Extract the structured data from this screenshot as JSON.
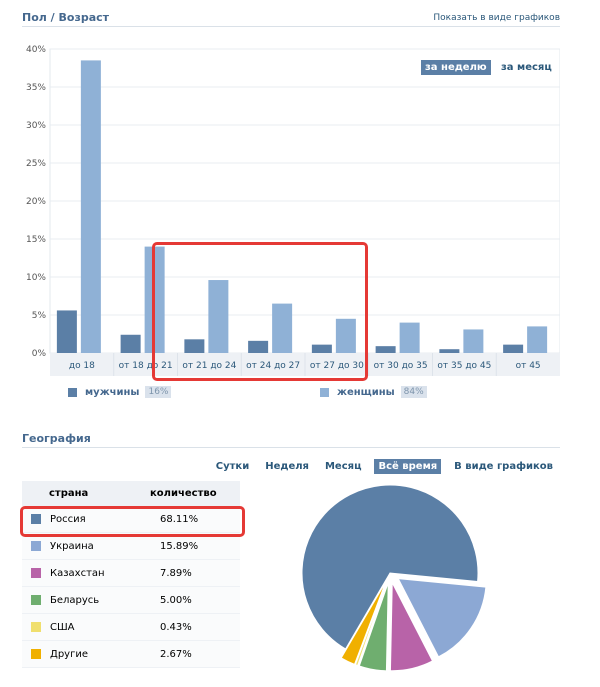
{
  "age_section": {
    "title": "Пол / Возраст",
    "graph_link": "Показать в виде графиков",
    "period_week": "за неделю",
    "period_month": "за месяц"
  },
  "chart_data": {
    "type": "bar",
    "categories": [
      "до 18",
      "от 18 до 21",
      "от 21 до 24",
      "от 24 до 27",
      "от 27 до 30",
      "от 30 до 35",
      "от 35 до 45",
      "от 45"
    ],
    "y_ticks": [
      "0%",
      "5%",
      "10%",
      "15%",
      "20%",
      "25%",
      "30%",
      "35%",
      "40%"
    ],
    "ylim": [
      0,
      40
    ],
    "grid": true,
    "series": [
      {
        "name": "мужчины",
        "color": "#5b7fa6",
        "values": [
          5.6,
          2.4,
          1.8,
          1.6,
          1.1,
          0.9,
          0.5,
          1.1
        ]
      },
      {
        "name": "женщины",
        "color": "#8fb1d6",
        "values": [
          38.5,
          14.0,
          9.6,
          6.5,
          4.5,
          4.0,
          3.1,
          3.5
        ]
      }
    ]
  },
  "legend": {
    "men_label": "мужчины",
    "men_pct": "16%",
    "women_label": "женщины",
    "women_pct": "84%"
  },
  "geo_section": {
    "title": "География",
    "tabs": [
      "Сутки",
      "Неделя",
      "Месяц",
      "Всё время",
      "В виде графиков"
    ],
    "active_tab": "Всё время",
    "col_country": "страна",
    "col_count": "количество",
    "rows": [
      {
        "country": "Россия",
        "value": "68.11%",
        "pct": 68.11,
        "color": "#5b7fa6"
      },
      {
        "country": "Украина",
        "value": "15.89%",
        "pct": 15.89,
        "color": "#8ca8d4"
      },
      {
        "country": "Казахстан",
        "value": "7.89%",
        "pct": 7.89,
        "color": "#b863a8"
      },
      {
        "country": "Беларусь",
        "value": "5.00%",
        "pct": 5.0,
        "color": "#6fae6f"
      },
      {
        "country": "США",
        "value": "0.43%",
        "pct": 0.43,
        "color": "#f0df6e"
      },
      {
        "country": "Другие",
        "value": "2.67%",
        "pct": 2.67,
        "color": "#f0b000"
      }
    ]
  }
}
